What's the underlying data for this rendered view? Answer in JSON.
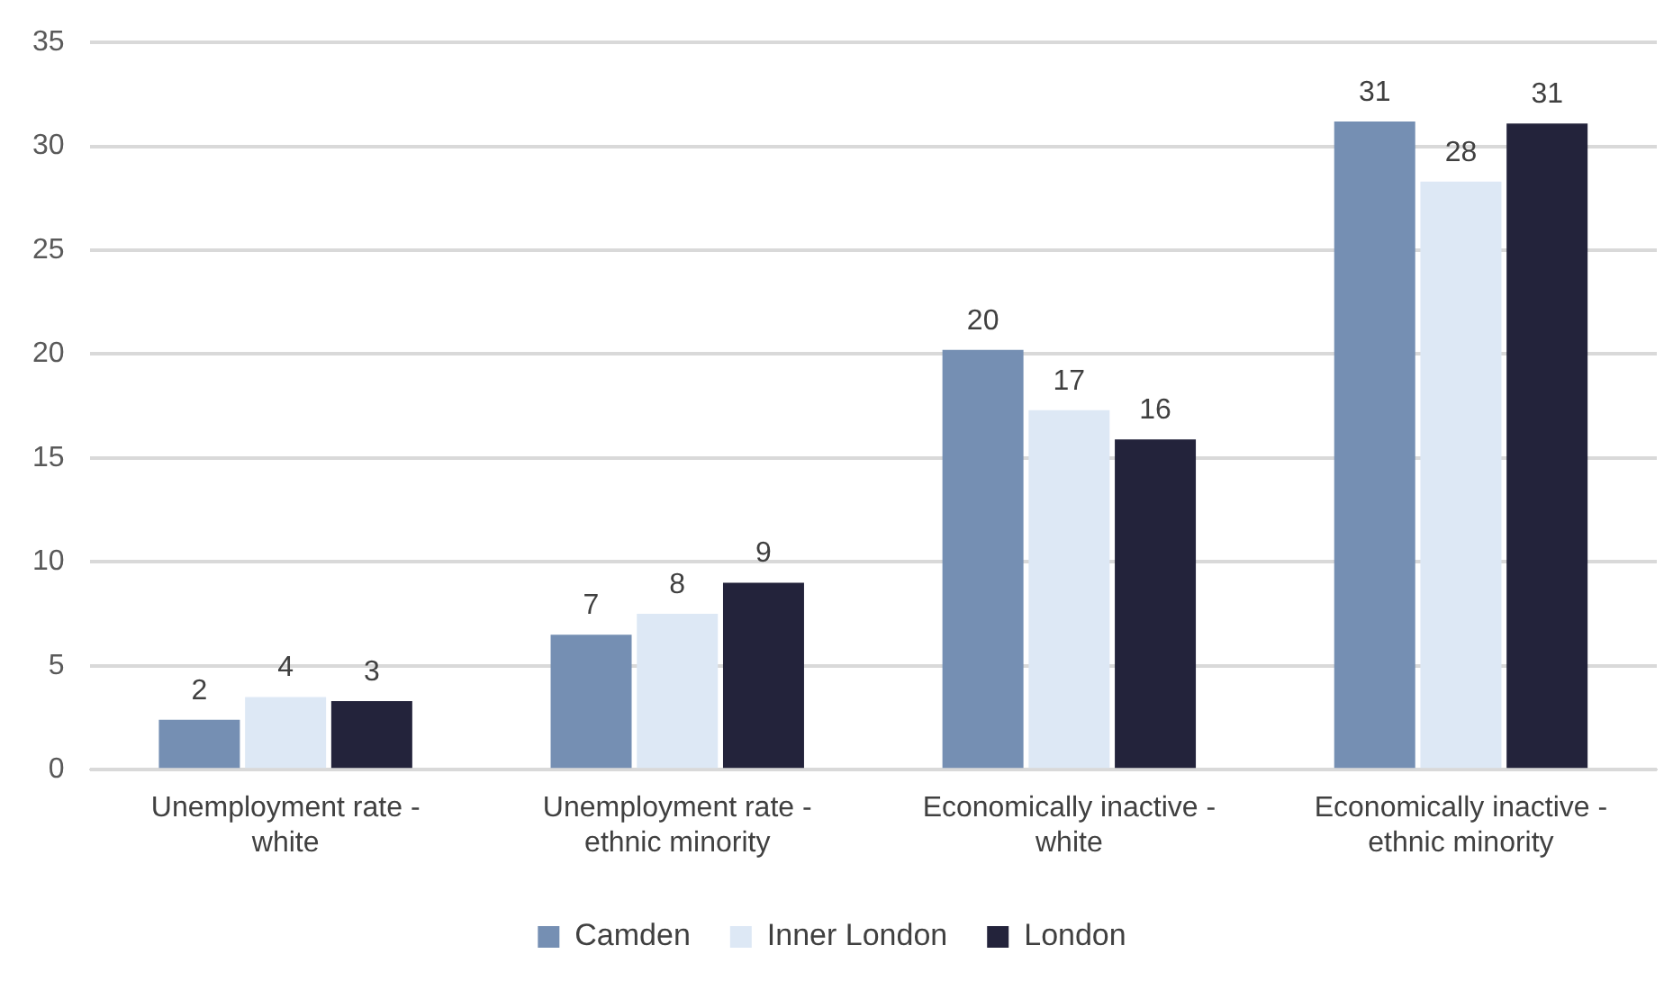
{
  "chart_data": {
    "type": "bar",
    "categories": [
      "Unemployment rate - white",
      "Unemployment rate - ethnic minority",
      "Economically inactive - white",
      "Economically inactive - ethnic minority"
    ],
    "series": [
      {
        "name": "Camden",
        "color": "#758fb3",
        "values": [
          2.4,
          6.5,
          20.2,
          31.2
        ],
        "value_labels": [
          "2",
          "7",
          "20",
          "31"
        ]
      },
      {
        "name": "Inner London",
        "color": "#dde8f5",
        "values": [
          3.5,
          7.5,
          17.3,
          28.3
        ],
        "value_labels": [
          "4",
          "8",
          "17",
          "28"
        ]
      },
      {
        "name": "London",
        "color": "#23233b",
        "values": [
          3.3,
          9.0,
          15.9,
          31.1
        ],
        "value_labels": [
          "3",
          "9",
          "16",
          "31"
        ]
      }
    ],
    "ylim": [
      0,
      35
    ],
    "yticks": [
      0,
      5,
      10,
      15,
      20,
      25,
      30,
      35
    ],
    "grid": "y",
    "legend": "bottom"
  }
}
